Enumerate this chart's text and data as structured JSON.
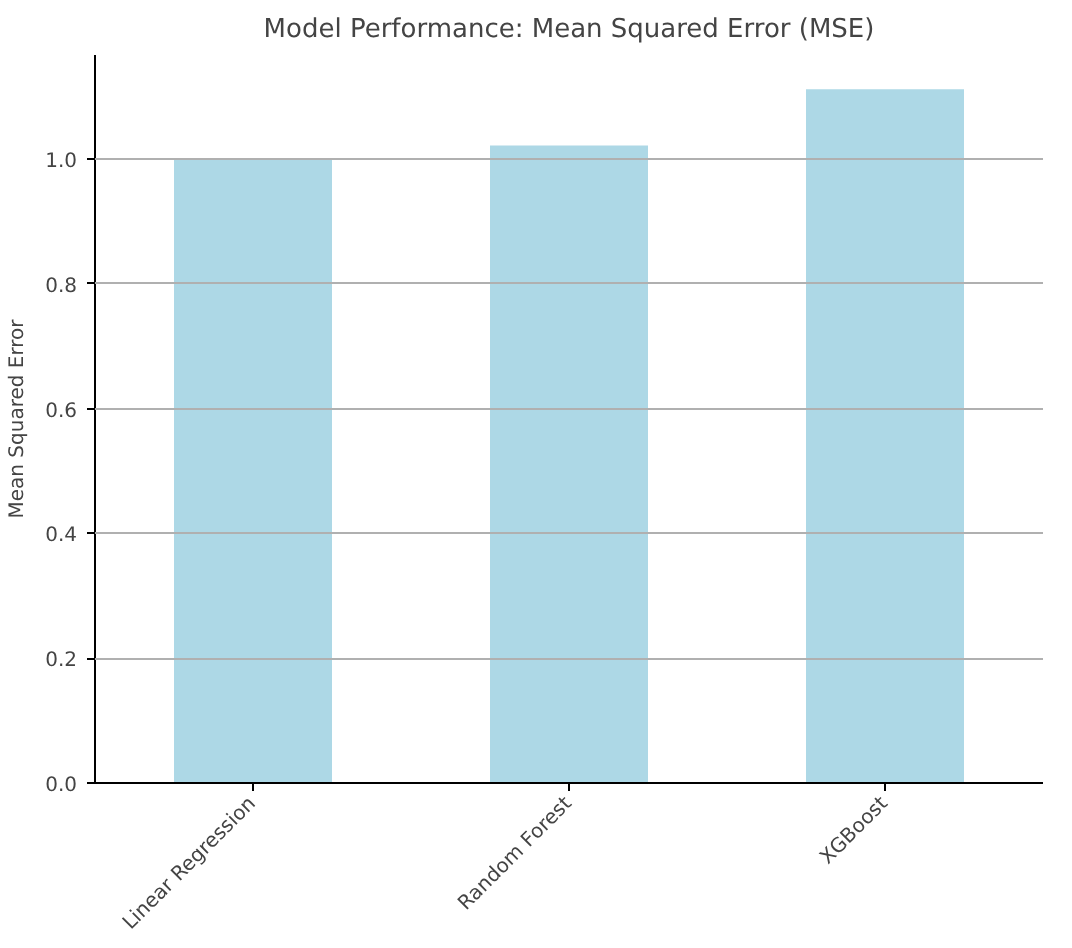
{
  "chart_data": {
    "type": "bar",
    "title": "Model Performance: Mean Squared Error (MSE)",
    "ylabel": "Mean Squared Error",
    "categories": [
      "Linear Regression",
      "Random Forest",
      "XGBoost"
    ],
    "values": [
      1.0,
      1.022,
      1.112
    ],
    "color": "#add8e6",
    "ylim": [
      0,
      1.167
    ],
    "yticks": [
      {
        "value": 0,
        "label": "0.0"
      },
      {
        "value": 0.2,
        "label": "0.2"
      },
      {
        "value": 0.4,
        "label": "0.4"
      },
      {
        "value": 0.6,
        "label": "0.6"
      },
      {
        "value": 0.8,
        "label": "0.8"
      },
      {
        "value": 1.0,
        "label": "1.0"
      }
    ],
    "grid": "y"
  }
}
